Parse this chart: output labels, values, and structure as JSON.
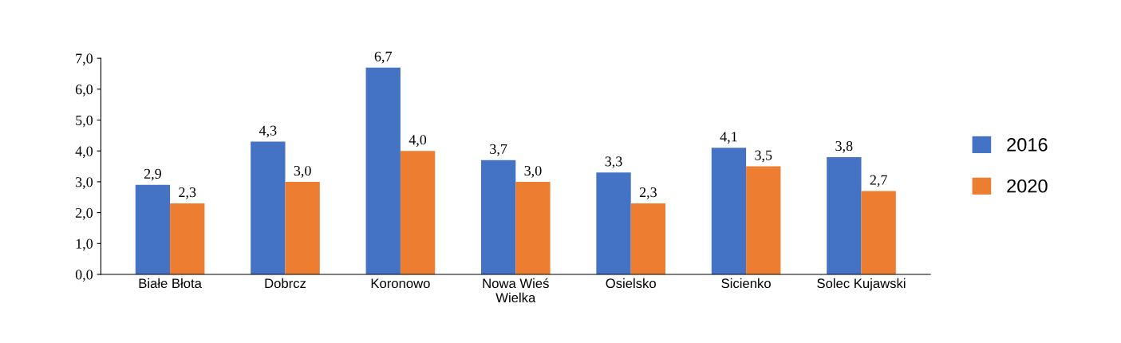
{
  "chart_data": {
    "type": "bar",
    "categories": [
      "Białe Błota",
      "Dobrcz",
      "Koronowo",
      "Nowa Wieś\nWielka",
      "Osielsko",
      "Sicienko",
      "Solec Kujawski"
    ],
    "series": [
      {
        "name": "2016",
        "color": "#4472c4",
        "values": [
          2.9,
          4.3,
          6.7,
          3.7,
          3.3,
          4.1,
          3.8
        ],
        "value_labels": [
          "2,9",
          "4,3",
          "6,7",
          "3,7",
          "3,3",
          "4,1",
          "3,8"
        ]
      },
      {
        "name": "2020",
        "color": "#ed7d31",
        "values": [
          2.3,
          3.0,
          4.0,
          3.0,
          2.3,
          3.5,
          2.7
        ],
        "value_labels": [
          "2,3",
          "3,0",
          "4,0",
          "3,0",
          "2,3",
          "3,5",
          "2,7"
        ]
      }
    ],
    "ylim": [
      0,
      7
    ],
    "yticks": [
      {
        "value": 0,
        "label": "0,0"
      },
      {
        "value": 1,
        "label": "1,0"
      },
      {
        "value": 2,
        "label": "2,0"
      },
      {
        "value": 3,
        "label": "3,0"
      },
      {
        "value": 4,
        "label": "4,0"
      },
      {
        "value": 5,
        "label": "5,0"
      },
      {
        "value": 6,
        "label": "6,0"
      },
      {
        "value": 7,
        "label": "7,0"
      }
    ],
    "grid": false,
    "legend": "right"
  }
}
